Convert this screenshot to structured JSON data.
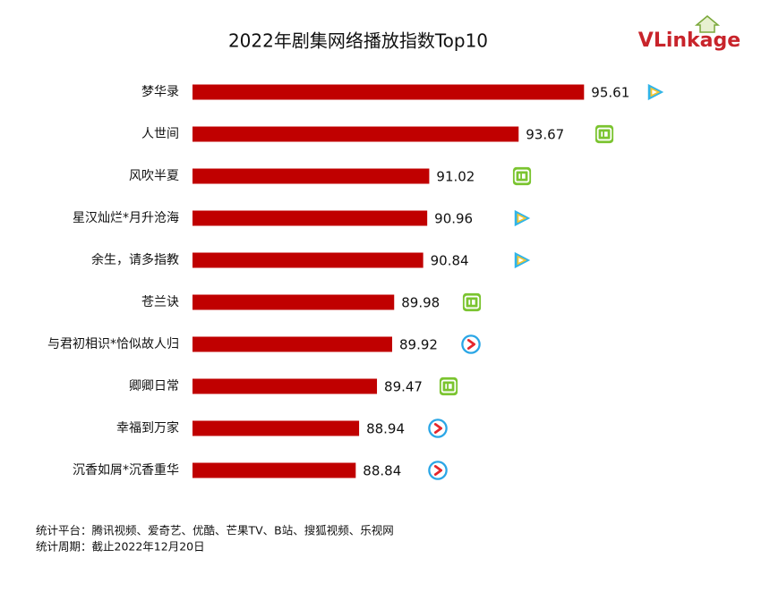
{
  "chart_data": {
    "type": "hbar",
    "title": "2022年剧集网络播放指数Top10",
    "brand": "VLinkage",
    "categories": [
      "梦华录",
      "人世间",
      "风吹半夏",
      "星汉灿烂*月升沧海",
      "余生，请多指教",
      "苍兰诀",
      "与君初相识*恰似故人归",
      "卿卿日常",
      "幸福到万家",
      "沉香如屑*沉香重华"
    ],
    "values": [
      95.61,
      93.67,
      91.02,
      90.96,
      90.84,
      89.98,
      89.92,
      89.47,
      88.94,
      88.84
    ],
    "color": "#c00000",
    "xlim": [
      84,
      96
    ],
    "notes": [
      "统计平台：腾讯视频、爱奇艺、优酷、芒果TV、B站、搜狐视频、乐视网",
      "统计周期：截止2022年12月20日"
    ]
  }
}
